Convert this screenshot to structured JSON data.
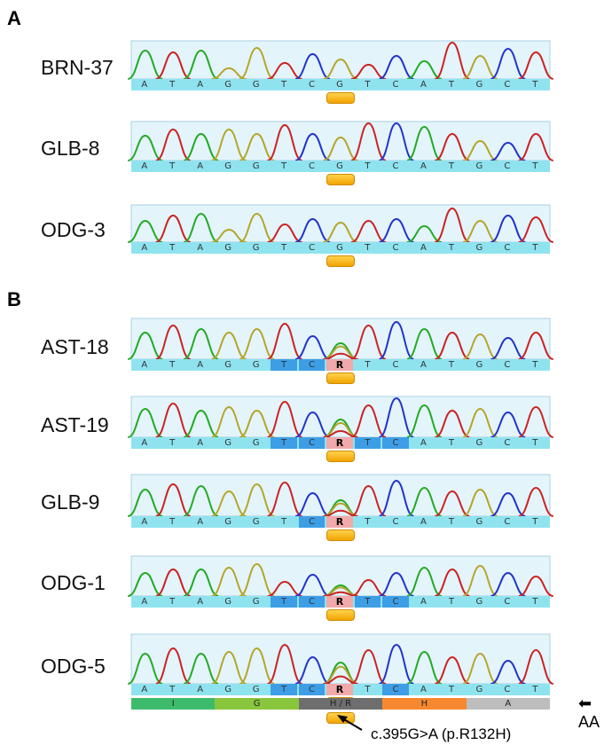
{
  "panel_a": {
    "letter": "A",
    "samples": [
      {
        "name": "BRN-37",
        "bases": [
          "A",
          "T",
          "A",
          "G",
          "G",
          "T",
          "C",
          "G",
          "T",
          "C",
          "A",
          "T",
          "G",
          "C",
          "T"
        ]
      },
      {
        "name": "GLB-8",
        "bases": [
          "A",
          "T",
          "A",
          "G",
          "G",
          "T",
          "C",
          "G",
          "T",
          "C",
          "A",
          "T",
          "G",
          "C",
          "T"
        ]
      },
      {
        "name": "ODG-3",
        "bases": [
          "A",
          "T",
          "A",
          "G",
          "G",
          "T",
          "C",
          "G",
          "T",
          "C",
          "A",
          "T",
          "G",
          "C",
          "T"
        ]
      }
    ]
  },
  "panel_b": {
    "letter": "B",
    "samples": [
      {
        "name": "AST-18",
        "bases": [
          "A",
          "T",
          "A",
          "G",
          "G",
          "T",
          "C",
          "R",
          "T",
          "C",
          "A",
          "T",
          "G",
          "C",
          "T"
        ],
        "codon_highlight": [
          5,
          6
        ]
      },
      {
        "name": "AST-19",
        "bases": [
          "A",
          "T",
          "A",
          "G",
          "G",
          "T",
          "C",
          "R",
          "T",
          "C",
          "A",
          "T",
          "G",
          "C",
          "T"
        ],
        "codon_highlight": [
          5,
          6,
          8,
          9
        ]
      },
      {
        "name": "GLB-9",
        "bases": [
          "A",
          "T",
          "A",
          "G",
          "G",
          "T",
          "C",
          "R",
          "T",
          "C",
          "A",
          "T",
          "G",
          "C",
          "T"
        ],
        "codon_highlight": [
          6
        ]
      },
      {
        "name": "ODG-1",
        "bases": [
          "A",
          "T",
          "A",
          "G",
          "G",
          "T",
          "C",
          "R",
          "T",
          "C",
          "A",
          "T",
          "G",
          "C",
          "T"
        ],
        "codon_highlight": [
          5,
          6,
          8,
          9
        ]
      },
      {
        "name": "ODG-5",
        "bases": [
          "A",
          "T",
          "A",
          "G",
          "G",
          "T",
          "C",
          "R",
          "T",
          "C",
          "A",
          "T",
          "G",
          "C",
          "T"
        ],
        "codon_highlight": [
          5,
          6,
          9
        ]
      }
    ]
  },
  "amino_acids": [
    {
      "label": "I",
      "color": "#3dbb6c"
    },
    {
      "label": "G",
      "color": "#8ac53e"
    },
    {
      "label": "H / R",
      "color": "#6e6e6e"
    },
    {
      "label": "H",
      "color": "#f7882f"
    },
    {
      "label": "A",
      "color": "#bdbdbd"
    }
  ],
  "aa_label": "AA",
  "mutation_label": "c.395G>A (p.R132H)",
  "colors": {
    "A": "#22aa22",
    "T": "#cc2222",
    "G": "#b5a52a",
    "C": "#2233cc",
    "seq_bg": "#8fe3ef",
    "trace_bg": "#e3f4fb",
    "mut_base": "#f2a9a9",
    "codon_blue": "#3d9ee6"
  }
}
